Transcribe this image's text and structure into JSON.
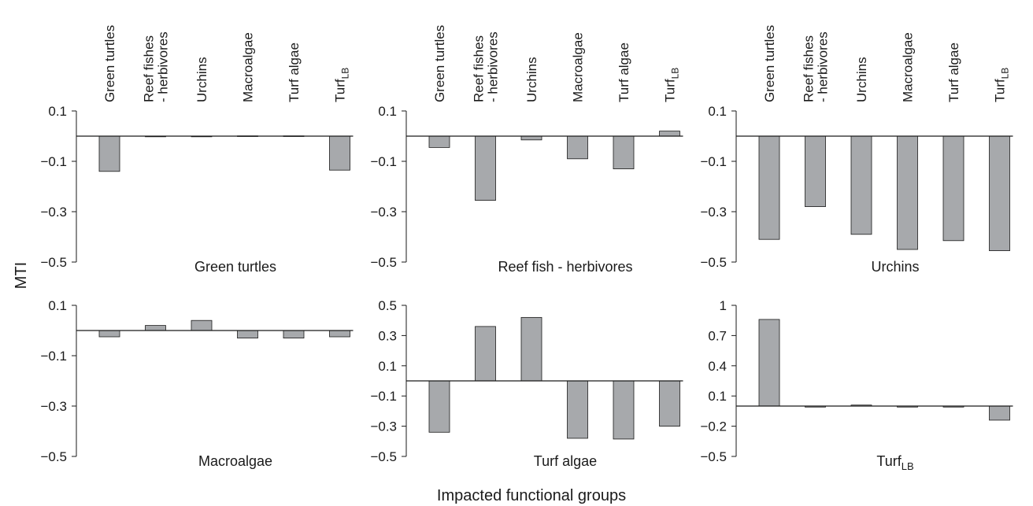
{
  "figure": {
    "ylabel": "MTI",
    "xlabel": "Impacted functional groups",
    "colors": {
      "bar": "#a7a9ac",
      "stroke": "#1a1a1a"
    }
  },
  "chart_data": [
    {
      "type": "bar",
      "title": "Green turtles",
      "categories": [
        "Green turtles",
        "Reef fishes - herbivores",
        "Urchins",
        "Macroalgae",
        "Turf algae",
        "TurfLB"
      ],
      "values": [
        -0.14,
        0.0,
        0.0,
        0.001,
        0.001,
        -0.135
      ],
      "ylim": [
        -0.5,
        0.1
      ],
      "yticks": [
        "0.1",
        "−0.1",
        "−0.3",
        "−0.5"
      ]
    },
    {
      "type": "bar",
      "title": "Reef fish - herbivores",
      "categories": [
        "Green turtles",
        "Reef fishes - herbivores",
        "Urchins",
        "Macroalgae",
        "Turf algae",
        "TurfLB"
      ],
      "values": [
        -0.045,
        -0.255,
        -0.015,
        -0.09,
        -0.13,
        0.02
      ],
      "ylim": [
        -0.5,
        0.1
      ],
      "yticks": [
        "0.1",
        "−0.1",
        "−0.3",
        "−0.5"
      ]
    },
    {
      "type": "bar",
      "title": "Urchins",
      "categories": [
        "Green turtles",
        "Reef fishes - herbivores",
        "Urchins",
        "Macroalgae",
        "Turf algae",
        "TurfLB"
      ],
      "values": [
        -0.41,
        -0.28,
        -0.39,
        -0.45,
        -0.415,
        -0.455
      ],
      "ylim": [
        -0.5,
        0.1
      ],
      "yticks": [
        "0.1",
        "−0.1",
        "−0.3",
        "−0.5"
      ]
    },
    {
      "type": "bar",
      "title": "Macroalgae",
      "categories": [
        "Green turtles",
        "Reef fishes - herbivores",
        "Urchins",
        "Macroalgae",
        "Turf algae",
        "TurfLB"
      ],
      "values": [
        -0.025,
        0.02,
        0.04,
        -0.03,
        -0.03,
        -0.025
      ],
      "ylim": [
        -0.5,
        0.1
      ],
      "yticks": [
        "0.1",
        "−0.1",
        "−0.3",
        "−0.5"
      ]
    },
    {
      "type": "bar",
      "title": "Turf algae",
      "categories": [
        "Green turtles",
        "Reef fishes - herbivores",
        "Urchins",
        "Macroalgae",
        "Turf algae",
        "TurfLB"
      ],
      "values": [
        -0.34,
        0.36,
        0.42,
        -0.38,
        -0.385,
        -0.3
      ],
      "ylim": [
        -0.5,
        0.5
      ],
      "yticks": [
        "0.5",
        "0.3",
        "0.1",
        "−0.1",
        "−0.3",
        "−0.5"
      ]
    },
    {
      "type": "bar",
      "title": "TurfLB",
      "categories": [
        "Green turtles",
        "Reef fishes - herbivores",
        "Urchins",
        "Macroalgae",
        "Turf algae",
        "TurfLB"
      ],
      "values": [
        0.86,
        -0.01,
        0.01,
        -0.01,
        -0.01,
        -0.14
      ],
      "ylim": [
        -0.5,
        1.0
      ],
      "yticks": [
        "1",
        "0.7",
        "0.4",
        "0.1",
        "−0.2",
        "−0.5"
      ]
    }
  ]
}
